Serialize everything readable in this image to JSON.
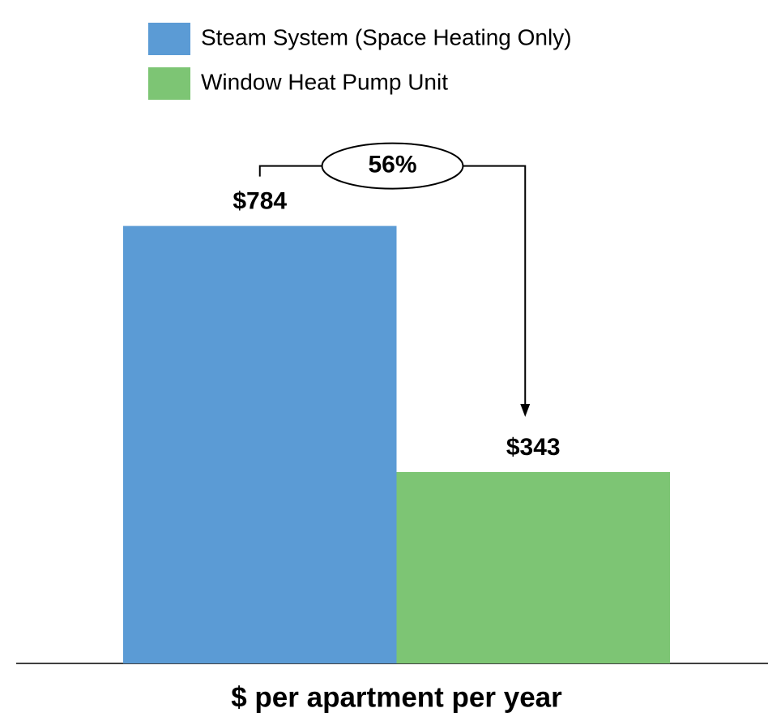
{
  "chart_data": {
    "type": "bar",
    "categories": [
      "$ per apartment per year"
    ],
    "series": [
      {
        "name": "Steam System (Space Heating Only)",
        "color": "#5b9bd5",
        "values": [
          784
        ],
        "value_labels": [
          "$784"
        ]
      },
      {
        "name": "Window Heat Pump Unit",
        "color": "#7dc574",
        "values": [
          343
        ],
        "value_labels": [
          "$343"
        ]
      }
    ],
    "ylim": [
      0,
      1000
    ],
    "annotations": [
      {
        "text": "56%"
      }
    ],
    "legend": "top"
  }
}
